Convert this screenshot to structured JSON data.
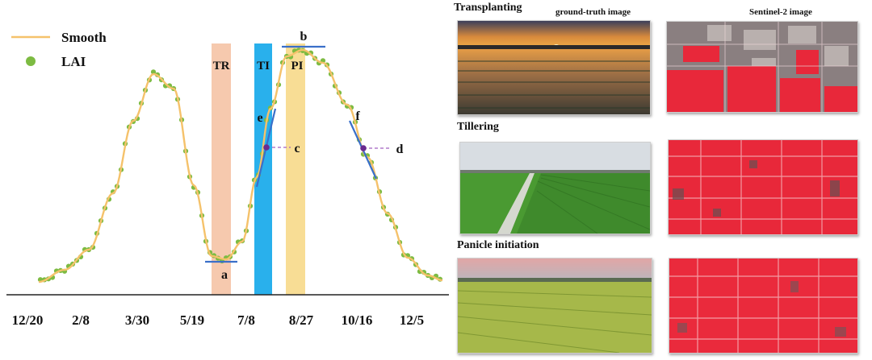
{
  "chart_data": {
    "type": "line",
    "legend": [
      "Smooth",
      "LAI"
    ],
    "legend_position": "top-left",
    "x_ticks": [
      "12/20",
      "2/8",
      "3/30",
      "5/19",
      "7/8",
      "8/27",
      "10/16",
      "12/5"
    ],
    "series": [
      {
        "name": "Smooth",
        "color": "#f5c26b"
      },
      {
        "name": "LAI",
        "color": "#7dbb42"
      }
    ],
    "stage_bands": [
      {
        "label": "TR",
        "color": "#f6c9ae"
      },
      {
        "label": "TI",
        "color": "#29b0ec"
      },
      {
        "label": "PI",
        "color": "#f8dd95"
      }
    ],
    "markers": [
      "a",
      "b",
      "c",
      "d",
      "e",
      "f"
    ]
  },
  "panels": {
    "column_headers": [
      "ground-truth image",
      "Sentinel-2 image"
    ],
    "stages": [
      "Transplanting",
      "Tillering",
      "Panicle initiation"
    ]
  },
  "colors": {
    "tangent": "#3a6fc9",
    "point": "#6a2a8f",
    "dash": "#a060c0"
  }
}
